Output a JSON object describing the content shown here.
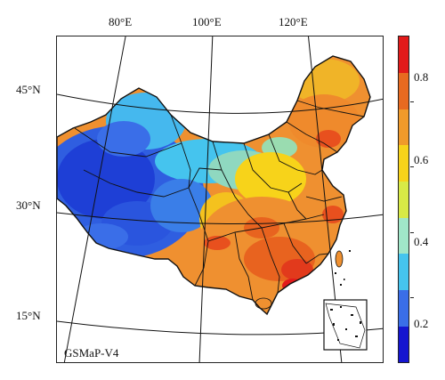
{
  "map": {
    "caption": "GSMaP-V4",
    "longitude_labels": [
      "80°E",
      "100°E",
      "120°E"
    ],
    "latitude_labels": [
      "45°N",
      "30°N",
      "15°N"
    ]
  },
  "colorbar": {
    "tick_labels": [
      "0.2",
      "0.4",
      "0.6",
      "0.8"
    ],
    "colors": [
      "#1515d0",
      "#3a6ee8",
      "#45c4ee",
      "#a0e6c8",
      "#d8ea46",
      "#f7d31a",
      "#f09a2a",
      "#e86a20",
      "#e21a1a"
    ]
  },
  "palette": {
    "deep_blue": "#1e3fd6",
    "blue": "#3a6ee8",
    "cyan": "#45c4ee",
    "green": "#9adcb0",
    "yellow": "#f7d31a",
    "orange": "#ef9030",
    "red": "#e23a1c"
  }
}
